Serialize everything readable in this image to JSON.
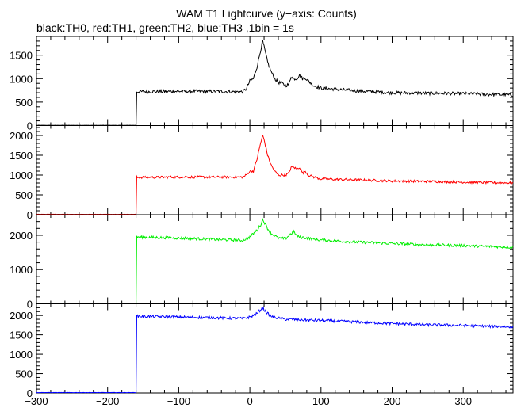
{
  "chart_data": {
    "type": "line",
    "title": "WAM T1 Lightcurve (y−axis: Counts)",
    "subtitle": "black:TH0, red:TH1, green:TH2, blue:TH3 ,1bin = 1s",
    "xlim": [
      -300,
      370
    ],
    "x_ticks": [
      -300,
      -200,
      -100,
      0,
      100,
      200,
      300
    ],
    "x_tick_labels": [
      "−300",
      "−200",
      "−100",
      "0",
      "100",
      "200",
      "300"
    ],
    "grid": false,
    "panels": [
      {
        "name": "TH0",
        "color": "#000000",
        "ylim": [
          0,
          1900
        ],
        "y_ticks": [
          0,
          500,
          1000,
          1500
        ],
        "x": [
          -300,
          -160,
          -159.5,
          -100,
          -50,
          -10,
          -5,
          0,
          5,
          10,
          15,
          18,
          20,
          25,
          30,
          35,
          40,
          45,
          50,
          55,
          58,
          62,
          66,
          70,
          74,
          78,
          82,
          90,
          100,
          150,
          200,
          250,
          300,
          370
        ],
        "values": [
          5,
          5,
          720,
          730,
          730,
          720,
          780,
          950,
          1000,
          1250,
          1600,
          1800,
          1680,
          1350,
          1150,
          1000,
          920,
          900,
          850,
          880,
          1050,
          1000,
          1000,
          1080,
          1000,
          1020,
          950,
          850,
          800,
          740,
          700,
          690,
          680,
          650
        ],
        "noise": 35
      },
      {
        "name": "TH1",
        "color": "#ff0000",
        "ylim": [
          0,
          2250
        ],
        "y_ticks": [
          0,
          500,
          1000,
          1500,
          2000
        ],
        "x": [
          -300,
          -160,
          -159.5,
          -100,
          -50,
          -10,
          -5,
          0,
          5,
          10,
          15,
          18,
          20,
          25,
          30,
          35,
          40,
          45,
          50,
          55,
          58,
          62,
          66,
          70,
          74,
          78,
          82,
          90,
          100,
          150,
          200,
          250,
          300,
          370
        ],
        "values": [
          10,
          10,
          940,
          950,
          950,
          950,
          1000,
          1100,
          1100,
          1400,
          1800,
          2000,
          1900,
          1500,
          1250,
          1100,
          1000,
          1000,
          1000,
          1050,
          1200,
          1200,
          1150,
          1200,
          1050,
          1100,
          1000,
          950,
          900,
          880,
          850,
          840,
          820,
          800
        ],
        "noise": 30
      },
      {
        "name": "TH2",
        "color": "#00ee00",
        "ylim": [
          0,
          2600
        ],
        "y_ticks": [
          0,
          1000,
          2000
        ],
        "x": [
          -300,
          -160,
          -159.5,
          -100,
          -50,
          -10,
          0,
          5,
          10,
          15,
          18,
          20,
          25,
          30,
          40,
          50,
          58,
          62,
          66,
          70,
          80,
          90,
          100,
          150,
          200,
          250,
          300,
          370
        ],
        "values": [
          15,
          15,
          1950,
          1920,
          1880,
          1850,
          1950,
          2050,
          2150,
          2300,
          2450,
          2400,
          2200,
          2050,
          1920,
          1900,
          2050,
          2100,
          1980,
          1950,
          1920,
          1880,
          1860,
          1800,
          1760,
          1720,
          1700,
          1650
        ],
        "noise": 40
      },
      {
        "name": "TH3",
        "color": "#0000ff",
        "ylim": [
          0,
          2300
        ],
        "y_ticks": [
          0,
          500,
          1000,
          1500,
          2000
        ],
        "x": [
          -300,
          -160,
          -159.5,
          -100,
          -50,
          -10,
          0,
          5,
          10,
          15,
          18,
          20,
          25,
          30,
          40,
          50,
          60,
          80,
          100,
          150,
          200,
          250,
          300,
          370
        ],
        "values": [
          10,
          10,
          1980,
          1960,
          1940,
          1920,
          1960,
          2000,
          2050,
          2150,
          2200,
          2150,
          2050,
          1980,
          1930,
          1900,
          1900,
          1880,
          1870,
          1830,
          1790,
          1760,
          1740,
          1700
        ],
        "noise": 35
      }
    ]
  }
}
